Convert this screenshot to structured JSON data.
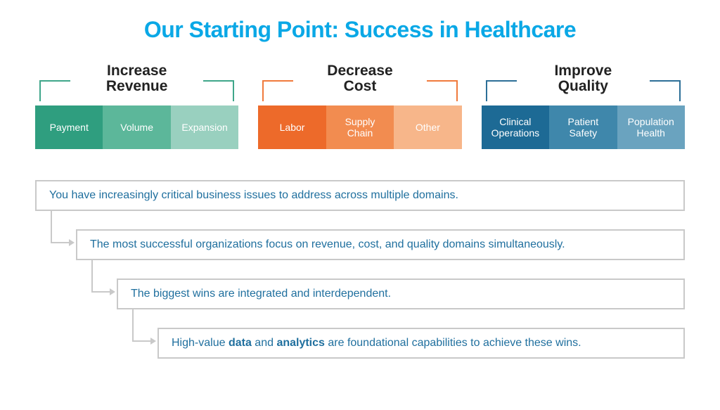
{
  "title": {
    "text": "Our Starting Point: Success in Healthcare",
    "color": "#0aa8e6",
    "fontsize": 32
  },
  "layout": {
    "bg": "#ffffff",
    "box_border": "#c9c9c9",
    "box_text_color": "#1f6f9e",
    "connector_color": "#c9c9c9"
  },
  "pillars": [
    {
      "label": "Increase\nRevenue",
      "bracket_color": "#3fa68a",
      "tiles": [
        {
          "label": "Payment",
          "color": "#2f9e7f"
        },
        {
          "label": "Volume",
          "color": "#5cb79a"
        },
        {
          "label": "Expansion",
          "color": "#99d0bf"
        }
      ]
    },
    {
      "label": "Decrease\nCost",
      "bracket_color": "#f07a3c",
      "tiles": [
        {
          "label": "Labor",
          "color": "#ed6a2a"
        },
        {
          "label": "Supply\nChain",
          "color": "#f28c50"
        },
        {
          "label": "Other",
          "color": "#f7b68a"
        }
      ]
    },
    {
      "label": "Improve\nQuality",
      "bracket_color": "#2c6f97",
      "tiles": [
        {
          "label": "Clinical\nOperations",
          "color": "#1d6a95"
        },
        {
          "label": "Patient\nSafety",
          "color": "#3f87ab"
        },
        {
          "label": "Population\nHealth",
          "color": "#6aa3bf"
        }
      ]
    }
  ],
  "statements": [
    {
      "indent": 0,
      "text": "You have increasingly critical business issues to address across multiple domains."
    },
    {
      "indent": 58,
      "text": "The most successful organizations focus on revenue, cost, and quality domains simultaneously."
    },
    {
      "indent": 116,
      "text": "The biggest wins are integrated and interdependent."
    },
    {
      "indent": 174,
      "text": "High-value <b>data</b> and <b>analytics</b> are foundational capabilities to achieve these wins."
    }
  ]
}
